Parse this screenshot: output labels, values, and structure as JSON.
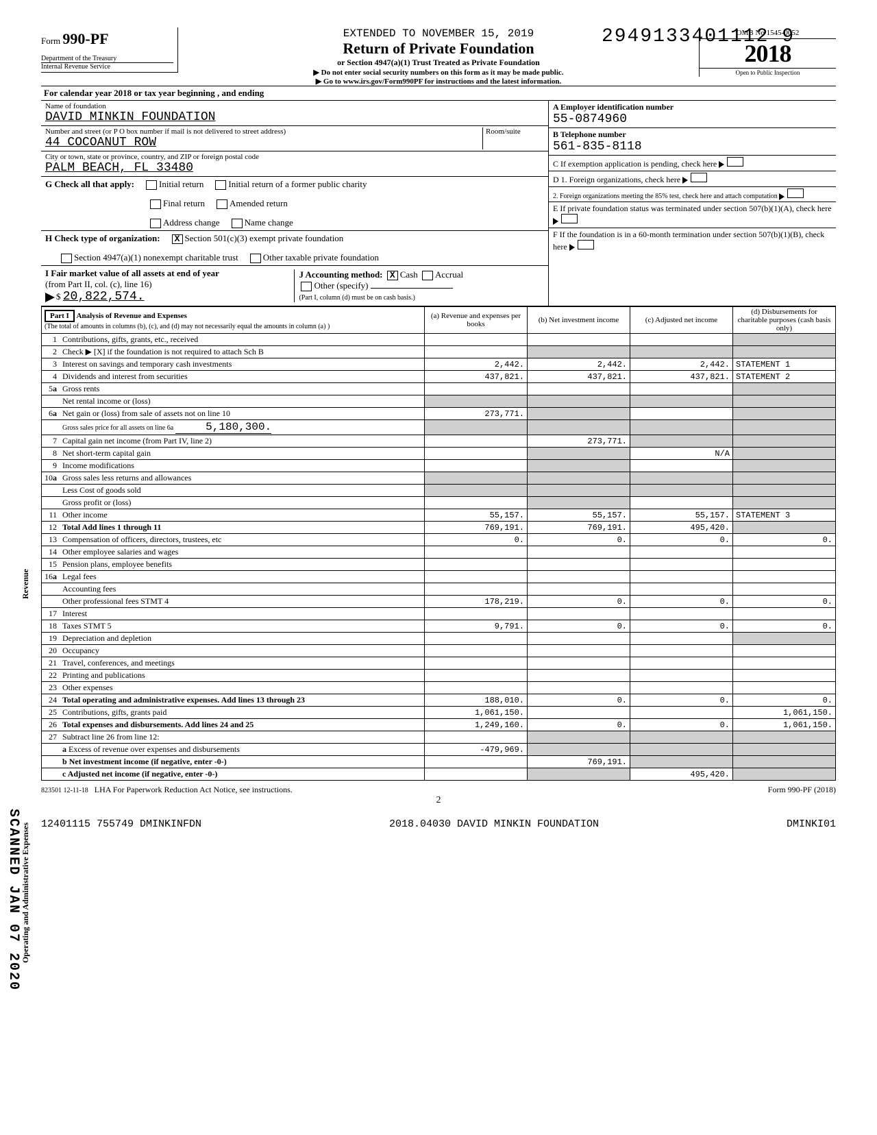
{
  "top_number": "2949133401112 9",
  "form": {
    "prefix": "Form",
    "number": "990-PF",
    "dept": "Department of the Treasury",
    "irs": "Internal Revenue Service"
  },
  "header": {
    "extended": "EXTENDED TO NOVEMBER 15, 2019",
    "title": "Return of Private Foundation",
    "subtitle": "or Section 4947(a)(1) Trust Treated as Private Foundation",
    "instr1": "▶ Do not enter social security numbers on this form as it may be made public.",
    "instr2": "▶ Go to www.irs.gov/Form990PF for instructions and the latest information.",
    "omb": "OMB No  1545-0052",
    "year": "2018",
    "open": "Open to Public Inspection"
  },
  "cal_year": "For calendar year 2018 or tax year beginning                                                                              , and ending",
  "foundation": {
    "name_lbl": "Name of foundation",
    "name": "DAVID MINKIN FOUNDATION",
    "street_lbl": "Number and street (or P O  box number if mail is not delivered to street address)",
    "room_lbl": "Room/suite",
    "street": "44 COCOANUT ROW",
    "city_lbl": "City or town, state or province, country, and ZIP or foreign postal code",
    "city": "PALM BEACH, FL  33480"
  },
  "right": {
    "A_lbl": "A  Employer identification number",
    "A_val": "55-0874960",
    "B_lbl": "B  Telephone number",
    "B_val": "561-835-8118",
    "C_lbl": "C  If exemption application is pending, check here",
    "D1_lbl": "D  1. Foreign organizations, check here",
    "D2_lbl": "2. Foreign organizations meeting the 85% test, check here and attach computation",
    "E_lbl": "E  If private foundation status was terminated under section 507(b)(1)(A), check here",
    "F_lbl": "F  If the foundation is in a 60-month termination under section 507(b)(1)(B), check here"
  },
  "G": {
    "lbl": "G   Check all that apply:",
    "opts": [
      "Initial return",
      "Final return",
      "Address change",
      "Initial return of a former public charity",
      "Amended return",
      "Name change"
    ]
  },
  "H": {
    "lbl": "H   Check type of organization:",
    "opt1": "Section 501(c)(3) exempt private foundation",
    "opt2": "Section 4947(a)(1) nonexempt charitable trust",
    "opt3": "Other taxable private foundation"
  },
  "I": {
    "lbl": "I    Fair market value of all assets at end of year",
    "sub": "(from Part II, col. (c), line 16)",
    "val": "20,822,574.",
    "part_note": "(Part I, column (d) must be on cash basis.)"
  },
  "J": {
    "lbl": "J   Accounting method:",
    "cash": "Cash",
    "accrual": "Accrual",
    "other": "Other (specify)"
  },
  "part1": {
    "hdr": "Part I",
    "title": "Analysis of Revenue and Expenses",
    "note": "(The total of amounts in columns (b), (c), and (d) may not necessarily equal the amounts in column (a) )",
    "col_a": "(a) Revenue and expenses per books",
    "col_b": "(b) Net investment income",
    "col_c": "(c) Adjusted net income",
    "col_d": "(d) Disbursements for charitable purposes (cash basis only)"
  },
  "rows": {
    "1": {
      "d": "Contributions, gifts, grants, etc., received"
    },
    "2": {
      "d": "Check ▶ [X] if the foundation is not required to attach Sch  B"
    },
    "3": {
      "d": "Interest on savings and temporary cash investments",
      "a": "2,442.",
      "b": "2,442.",
      "c": "2,442.",
      "e": "STATEMENT 1"
    },
    "4": {
      "d": "Dividends and interest from securities",
      "a": "437,821.",
      "b": "437,821.",
      "c": "437,821.",
      "e": "STATEMENT 2"
    },
    "5a": {
      "d": "Gross rents"
    },
    "5b": {
      "d": "Net rental income or (loss)"
    },
    "6a": {
      "d": "Net gain or (loss) from sale of assets not on line 10",
      "a": "273,771."
    },
    "6b": {
      "d": "Gross sales price for all assets on line 6a",
      "v": "5,180,300."
    },
    "7": {
      "d": "Capital gain net income (from Part IV, line 2)",
      "b": "273,771."
    },
    "8": {
      "d": "Net short-term capital gain",
      "c": "N/A"
    },
    "9": {
      "d": "Income modifications"
    },
    "10a": {
      "d": "Gross sales less returns and allowances"
    },
    "10b": {
      "d": "Less  Cost of goods sold"
    },
    "10c": {
      "d": "Gross profit or (loss)"
    },
    "11": {
      "d": "Other income",
      "a": "55,157.",
      "b": "55,157.",
      "c": "55,157.",
      "e": "STATEMENT 3"
    },
    "12": {
      "d": "Total  Add lines 1 through 11",
      "a": "769,191.",
      "b": "769,191.",
      "c": "495,420."
    },
    "13": {
      "d": "Compensation of officers, directors, trustees, etc",
      "a": "0.",
      "b": "0.",
      "c": "0.",
      "dd": "0."
    },
    "14": {
      "d": "Other employee salaries and wages"
    },
    "15": {
      "d": "Pension plans, employee benefits"
    },
    "16a": {
      "d": "Legal fees"
    },
    "16b": {
      "d": "Accounting fees"
    },
    "16c": {
      "d": "Other professional fees          STMT 4",
      "a": "178,219.",
      "b": "0.",
      "c": "0.",
      "dd": "0."
    },
    "17": {
      "d": "Interest"
    },
    "18": {
      "d": "Taxes                            STMT 5",
      "a": "9,791.",
      "b": "0.",
      "c": "0.",
      "dd": "0."
    },
    "19": {
      "d": "Depreciation and depletion"
    },
    "20": {
      "d": "Occupancy"
    },
    "21": {
      "d": "Travel, conferences, and meetings"
    },
    "22": {
      "d": "Printing and publications"
    },
    "23": {
      "d": "Other expenses"
    },
    "24": {
      "d": "Total operating and administrative expenses. Add lines 13 through 23",
      "a": "188,010.",
      "b": "0.",
      "c": "0.",
      "dd": "0."
    },
    "25": {
      "d": "Contributions, gifts, grants paid",
      "a": "1,061,150.",
      "dd": "1,061,150."
    },
    "26": {
      "d": "Total expenses and disbursements. Add lines 24 and 25",
      "a": "1,249,160.",
      "b": "0.",
      "c": "0.",
      "dd": "1,061,150."
    },
    "27": {
      "d": "Subtract line 26 from line 12:"
    },
    "27a": {
      "d": "Excess of revenue over expenses and disbursements",
      "a": "-479,969."
    },
    "27b": {
      "d": "Net investment income (if negative, enter -0-)",
      "b": "769,191."
    },
    "27c": {
      "d": "Adjusted net income (if negative, enter -0-)",
      "c": "495,420."
    }
  },
  "vert_labels": {
    "revenue": "Revenue",
    "expenses": "Operating and Administrative Expenses"
  },
  "scanned": "SCANNED JAN 07 2020",
  "footer": {
    "code": "823501  12-11-18",
    "lha": "LHA  For Paperwork Reduction Act Notice, see instructions.",
    "page": "2",
    "form": "Form 990-PF (2018)"
  },
  "bottom": {
    "left": "12401115 755749 DMINKINFDN",
    "center": "2018.04030 DAVID MINKIN FOUNDATION",
    "right": "DMINKI01"
  }
}
